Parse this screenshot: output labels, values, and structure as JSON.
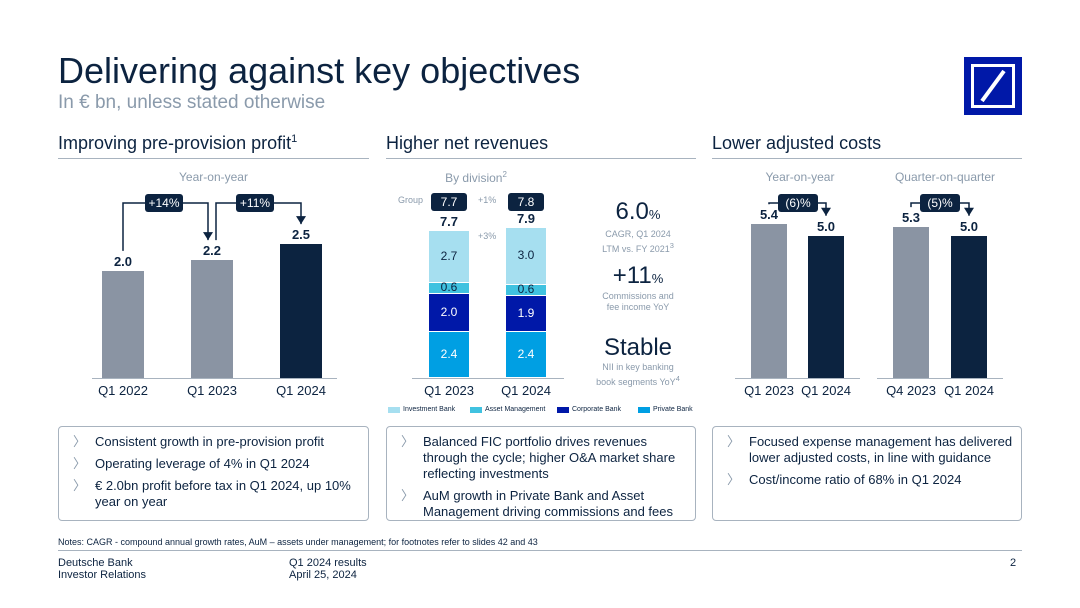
{
  "header": {
    "title": "Delivering against key objectives",
    "subtitle": "In € bn, unless stated otherwise"
  },
  "sections": {
    "left": {
      "heading": "Improving pre-provision profit",
      "footnote_mark": "1",
      "subheading": "Year-on-year"
    },
    "middle": {
      "heading": "Higher net revenues",
      "subheading": "By division",
      "subheading_mark": "2"
    },
    "right": {
      "heading": "Lower adjusted costs",
      "sub_yoy": "Year-on-year",
      "sub_qoq": "Quarter-on-quarter"
    }
  },
  "chart_data": [
    {
      "type": "bar",
      "title": "Improving pre-provision profit",
      "categories": [
        "Q1 2022",
        "Q1 2023",
        "Q1 2024"
      ],
      "values": [
        2.0,
        2.2,
        2.5
      ],
      "value_labels": [
        "2.0",
        "2.2",
        "2.5"
      ],
      "ylim": [
        0,
        2.8
      ],
      "growth_labels": [
        "+14%",
        "+11%"
      ]
    },
    {
      "type": "bar",
      "stacked": true,
      "title": "Higher net revenues",
      "categories": [
        "Q1 2023",
        "Q1 2024"
      ],
      "series": [
        {
          "name": "Private Bank",
          "values": [
            2.4,
            2.4
          ],
          "labels": [
            "2.4",
            "2.4"
          ],
          "color": "#009fe3"
        },
        {
          "name": "Corporate Bank",
          "values": [
            2.0,
            1.9
          ],
          "labels": [
            "2.0",
            "1.9"
          ],
          "color": "#0018a8"
        },
        {
          "name": "Asset Management",
          "values": [
            0.6,
            0.6
          ],
          "labels": [
            "0.6",
            "0.6"
          ],
          "color": "#40c2e0"
        },
        {
          "name": "Investment Bank",
          "values": [
            2.7,
            3.0
          ],
          "labels": [
            "2.7",
            "3.0"
          ],
          "color": "#a6dff0"
        }
      ],
      "legend_order": [
        "Investment Bank",
        "Asset Management",
        "Corporate Bank",
        "Private Bank"
      ],
      "totals": [
        "7.7",
        "7.9"
      ],
      "total_change": "+3%",
      "group_label": "Group",
      "group_values": [
        "7.7",
        "7.8"
      ],
      "group_change": "+1%",
      "ylim": [
        0,
        8.4
      ]
    },
    {
      "type": "bar",
      "title": "Lower adjusted costs — Year-on-year",
      "categories": [
        "Q1 2023",
        "Q1 2024"
      ],
      "values": [
        5.4,
        5.0
      ],
      "value_labels": [
        "5.4",
        "5.0"
      ],
      "change_label": "(6)%",
      "ylim": [
        0,
        6.5
      ]
    },
    {
      "type": "bar",
      "title": "Lower adjusted costs — Quarter-on-quarter",
      "categories": [
        "Q4 2023",
        "Q1 2024"
      ],
      "values": [
        5.3,
        5.0
      ],
      "value_labels": [
        "5.3",
        "5.0"
      ],
      "change_label": "(5)%",
      "ylim": [
        0,
        6.5
      ]
    }
  ],
  "kpis": [
    {
      "big": "6.0",
      "unit": "%",
      "desc": "CAGR, Q1 2024 LTM vs. FY 2021",
      "mark": "3"
    },
    {
      "big": "+11",
      "unit": "%",
      "desc": "Commissions and fee income YoY",
      "mark": ""
    },
    {
      "big": "Stable",
      "unit": "",
      "desc": "NII in key banking book segments YoY",
      "mark": "4"
    }
  ],
  "bullets": {
    "left": [
      "Consistent growth in pre-provision profit",
      "Operating leverage of 4% in Q1 2024",
      "€ 2.0bn profit before tax in Q1 2024, up 10% year on year"
    ],
    "middle": [
      "Balanced FIC portfolio drives revenues through the cycle; higher O&A market share reflecting investments",
      "AuM growth in Private Bank and Asset Management driving commissions and fees"
    ],
    "right": [
      "Focused expense management has delivered lower adjusted costs, in line with guidance",
      "Cost/income ratio of 68% in Q1 2024"
    ]
  },
  "notes": "Notes: CAGR - compound annual growth rates, AuM – assets under management; for footnotes refer to slides 42 and 43",
  "footer": {
    "company": "Deutsche Bank",
    "dept": "Investor Relations",
    "doc": "Q1 2024 results",
    "date": "April 25, 2024",
    "page": "2"
  },
  "colors": {
    "navy": "#0c2340",
    "grey": "#8a94a3",
    "brand": "#0018a8"
  }
}
